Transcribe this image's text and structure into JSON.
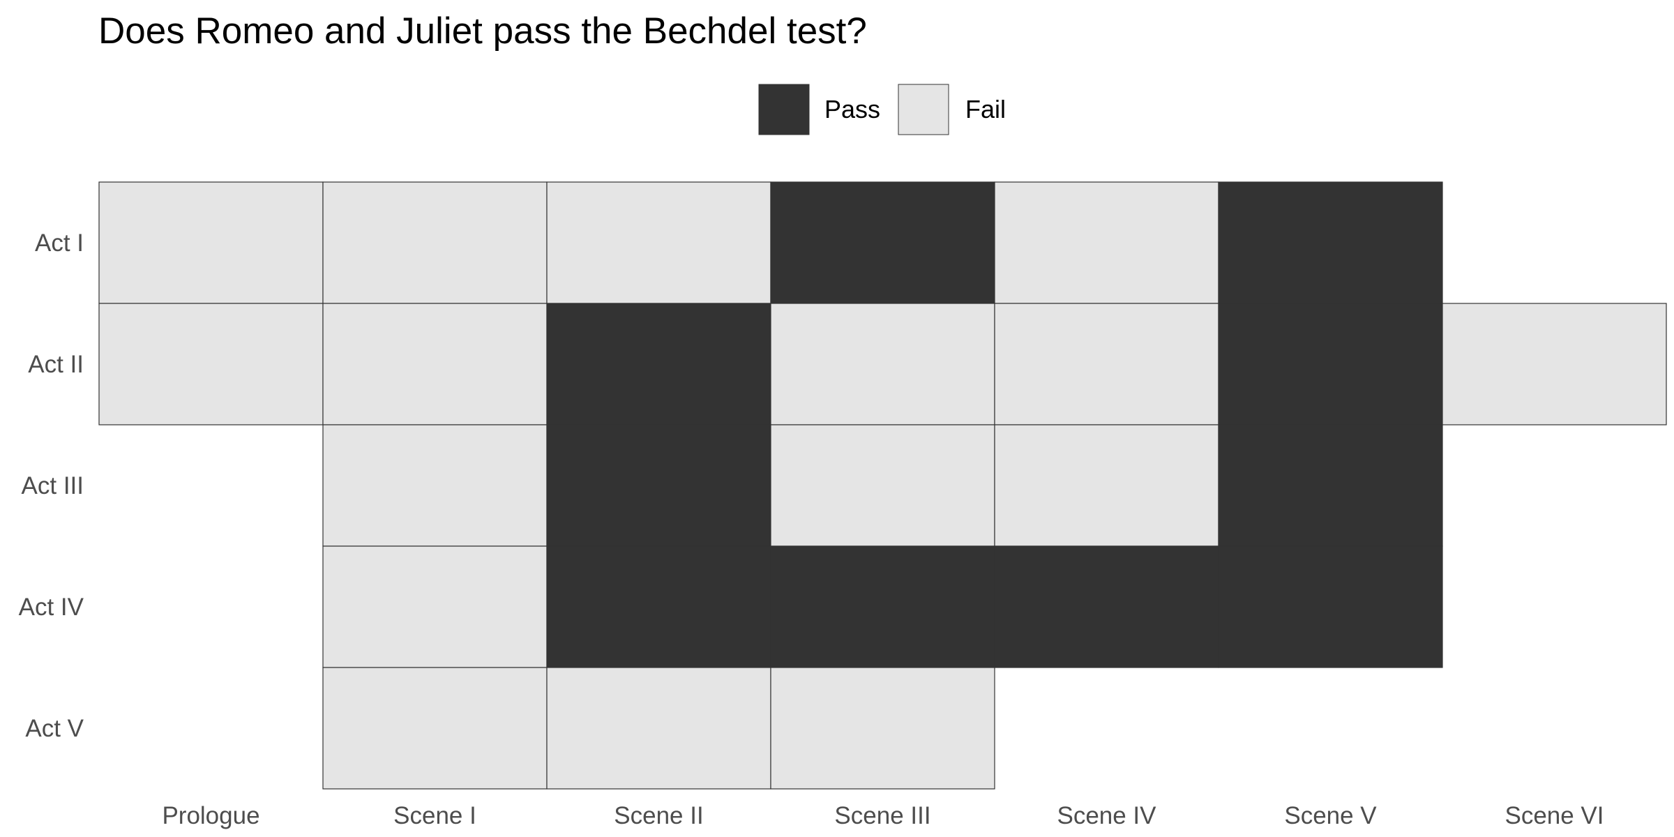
{
  "chart_data": {
    "type": "heatmap",
    "title": "Does Romeo and Juliet pass the Bechdel test?",
    "xlabel": "",
    "ylabel": "",
    "x_categories": [
      "Prologue",
      "Scene I",
      "Scene II",
      "Scene III",
      "Scene IV",
      "Scene V",
      "Scene VI"
    ],
    "y_categories": [
      "Act I",
      "Act II",
      "Act III",
      "Act IV",
      "Act V"
    ],
    "legend": {
      "position": "top",
      "entries": [
        {
          "label": "Pass",
          "color": "#333333"
        },
        {
          "label": "Fail",
          "color": "#e5e5e5"
        }
      ]
    },
    "grid": false,
    "cells": [
      {
        "act": "Act I",
        "scene": "Prologue",
        "value": "Fail"
      },
      {
        "act": "Act I",
        "scene": "Scene I",
        "value": "Fail"
      },
      {
        "act": "Act I",
        "scene": "Scene II",
        "value": "Fail"
      },
      {
        "act": "Act I",
        "scene": "Scene III",
        "value": "Pass"
      },
      {
        "act": "Act I",
        "scene": "Scene IV",
        "value": "Fail"
      },
      {
        "act": "Act I",
        "scene": "Scene V",
        "value": "Pass"
      },
      {
        "act": "Act II",
        "scene": "Prologue",
        "value": "Fail"
      },
      {
        "act": "Act II",
        "scene": "Scene I",
        "value": "Fail"
      },
      {
        "act": "Act II",
        "scene": "Scene II",
        "value": "Pass"
      },
      {
        "act": "Act II",
        "scene": "Scene III",
        "value": "Fail"
      },
      {
        "act": "Act II",
        "scene": "Scene IV",
        "value": "Fail"
      },
      {
        "act": "Act II",
        "scene": "Scene V",
        "value": "Pass"
      },
      {
        "act": "Act II",
        "scene": "Scene VI",
        "value": "Fail"
      },
      {
        "act": "Act III",
        "scene": "Scene I",
        "value": "Fail"
      },
      {
        "act": "Act III",
        "scene": "Scene II",
        "value": "Pass"
      },
      {
        "act": "Act III",
        "scene": "Scene III",
        "value": "Fail"
      },
      {
        "act": "Act III",
        "scene": "Scene IV",
        "value": "Fail"
      },
      {
        "act": "Act III",
        "scene": "Scene V",
        "value": "Pass"
      },
      {
        "act": "Act IV",
        "scene": "Scene I",
        "value": "Fail"
      },
      {
        "act": "Act IV",
        "scene": "Scene II",
        "value": "Pass"
      },
      {
        "act": "Act IV",
        "scene": "Scene III",
        "value": "Pass"
      },
      {
        "act": "Act IV",
        "scene": "Scene IV",
        "value": "Pass"
      },
      {
        "act": "Act IV",
        "scene": "Scene V",
        "value": "Pass"
      },
      {
        "act": "Act V",
        "scene": "Scene I",
        "value": "Fail"
      },
      {
        "act": "Act V",
        "scene": "Scene II",
        "value": "Fail"
      },
      {
        "act": "Act V",
        "scene": "Scene III",
        "value": "Fail"
      }
    ]
  }
}
